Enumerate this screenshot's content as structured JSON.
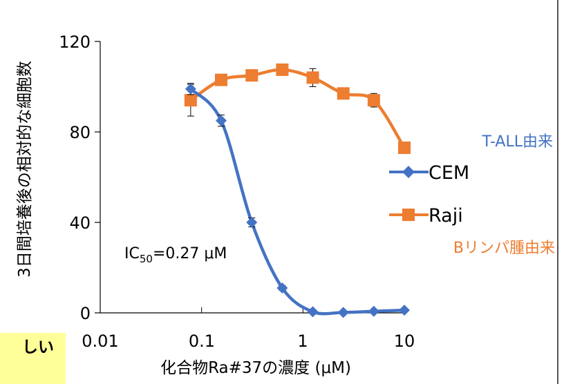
{
  "chart_data": {
    "type": "line",
    "ylabel": "3日間培養後の相対的な細胞数",
    "xlabel": "化合物Ra#37の濃度 (μM)",
    "x_scale": "log",
    "xlim": [
      0.01,
      10
    ],
    "ylim": [
      0,
      120
    ],
    "x_ticks": [
      "0.01",
      "0.1",
      "1",
      "10"
    ],
    "y_ticks": [
      "0",
      "40",
      "80",
      "120"
    ],
    "grid": false,
    "legend_position": "right",
    "series": [
      {
        "name": "CEM",
        "color": "#4472C4",
        "marker": "diamond",
        "x": [
          0.078,
          0.156,
          0.3125,
          0.625,
          1.25,
          2.5,
          5,
          10
        ],
        "y": [
          99,
          85,
          40,
          11,
          0.5,
          0.2,
          0.7,
          1.2
        ],
        "err": [
          2.5,
          2.5,
          2,
          1,
          0.5,
          0.5,
          0.5,
          0.5
        ],
        "origin_label": "T-ALL由来"
      },
      {
        "name": "Raji",
        "color": "#ED7D31",
        "marker": "square",
        "x": [
          0.078,
          0.156,
          0.3125,
          0.625,
          1.25,
          2.5,
          5,
          10
        ],
        "y": [
          94,
          103,
          105,
          107.5,
          104,
          97,
          94,
          73
        ],
        "err": [
          7,
          2.5,
          1.5,
          2,
          4,
          1.5,
          3,
          1
        ],
        "origin_label": "Bリンパ腫由来"
      }
    ],
    "annotation": {
      "prefix": "IC",
      "subscript": "50",
      "value": "=0.27 μM"
    }
  },
  "callout": {
    "text": "しい",
    "fill": "#FFFF99"
  }
}
